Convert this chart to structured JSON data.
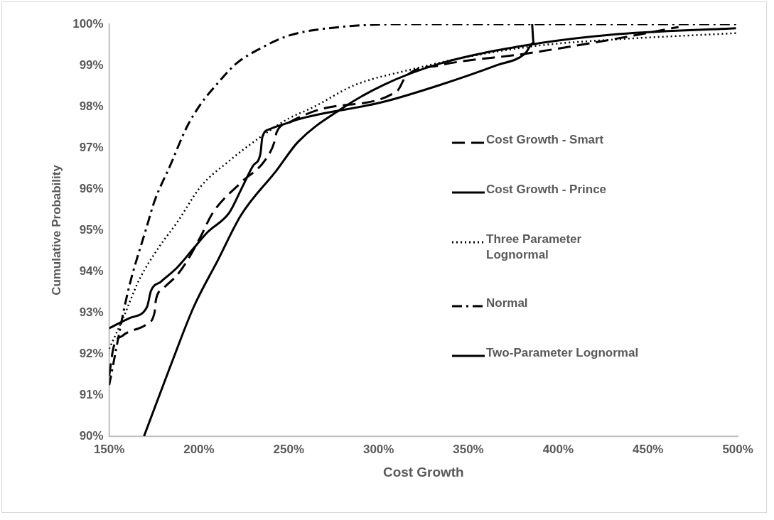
{
  "chart_data": {
    "type": "line",
    "xlabel": "Cost Growth",
    "ylabel": "Cumulative Probability",
    "xlim": [
      150,
      500
    ],
    "xticks": [
      {
        "value": 150,
        "label": "150%"
      },
      {
        "value": 200,
        "label": "200%"
      },
      {
        "value": 250,
        "label": "250%"
      },
      {
        "value": 300,
        "label": "300%"
      },
      {
        "value": 350,
        "label": "350%"
      },
      {
        "value": 400,
        "label": "400%"
      },
      {
        "value": 450,
        "label": "450%"
      },
      {
        "value": 500,
        "label": "500%"
      }
    ],
    "ylim": [
      90,
      100
    ],
    "yticks": [
      {
        "value": 90,
        "label": "90%"
      },
      {
        "value": 91,
        "label": "91%"
      },
      {
        "value": 92,
        "label": "92%"
      },
      {
        "value": 93,
        "label": "93%"
      },
      {
        "value": 94,
        "label": "94%"
      },
      {
        "value": 95,
        "label": "95%"
      },
      {
        "value": 96,
        "label": "96%"
      },
      {
        "value": 97,
        "label": "97%"
      },
      {
        "value": 98,
        "label": "98%"
      },
      {
        "value": 99,
        "label": "99%"
      },
      {
        "value": 100,
        "label": "100%"
      }
    ],
    "grid": false,
    "legend": "right",
    "marker": "none",
    "series": [
      {
        "name": "Cost Growth - Smart",
        "color": "#000000",
        "line_style": "dashed",
        "x": [
          150,
          152.4,
          157.5,
          170.9,
          175.3,
          176,
          180,
          188,
          194.6,
          201,
          207.7,
          223.5,
          236.5,
          242,
          243.2,
          250,
          270.9,
          310.4,
          315.2,
          334,
          381.5,
          429,
          467
        ],
        "values": [
          91.46,
          92.15,
          92.44,
          92.72,
          93.01,
          93.3,
          93.58,
          93.92,
          94.34,
          94.85,
          95.42,
          96.16,
          96.68,
          97.14,
          97.37,
          97.61,
          97.97,
          98.38,
          98.73,
          99.0,
          99.28,
          99.62,
          99.93
        ]
      },
      {
        "name": "Cost Growth - Prince",
        "color": "#000000",
        "line_style": "solid",
        "x": [
          150,
          161.5,
          171,
          173.3,
          178.8,
          188,
          197,
          205,
          216.8,
          223.5,
          230.2,
          234.2,
          235.3,
          239.3,
          250,
          255.1,
          302.5,
          334,
          365.7,
          381.5,
          386.3,
          385.5
        ],
        "values": [
          92.62,
          92.87,
          93.13,
          93.53,
          93.75,
          94.1,
          94.56,
          94.96,
          95.42,
          95.99,
          96.57,
          96.85,
          97.26,
          97.45,
          97.61,
          97.69,
          98.11,
          98.52,
          99.0,
          99.28,
          99.55,
          100
        ]
      },
      {
        "name": "Three Parameter Lognormal",
        "color": "#000000",
        "line_style": "dotted",
        "x": [
          150,
          157.5,
          167,
          177.3,
          188,
          201,
          216.8,
          234.2,
          250,
          263,
          286.7,
          318.3,
          350,
          389.4,
          429,
          499
        ],
        "values": [
          92.12,
          92.84,
          93.82,
          94.56,
          95.2,
          96.06,
          96.68,
          97.26,
          97.71,
          97.97,
          98.52,
          98.9,
          99.21,
          99.48,
          99.62,
          99.78
        ]
      },
      {
        "name": "Normal",
        "color": "#000000",
        "line_style": "dashdot",
        "x": [
          150,
          160.3,
          170.9,
          175.3,
          184,
          193.1,
          201,
          210.5,
          220.7,
          234.2,
          250,
          278.8,
          318,
          500
        ],
        "values": [
          91.24,
          93.48,
          95.08,
          95.71,
          96.57,
          97.49,
          98.06,
          98.57,
          99.04,
          99.41,
          99.72,
          99.93,
          100,
          100
        ]
      },
      {
        "name": "Two-Parameter Lognormal",
        "color": "#000000",
        "line_style": "solid",
        "x": [
          169.4,
          184,
          197,
          210.5,
          223.5,
          243.2,
          255.1,
          278.8,
          302.5,
          334,
          381.5,
          429,
          499
        ],
        "values": [
          90,
          91.69,
          93.13,
          94.27,
          95.37,
          96.45,
          97.14,
          97.93,
          98.52,
          99.04,
          99.48,
          99.74,
          99.9
        ]
      }
    ]
  }
}
